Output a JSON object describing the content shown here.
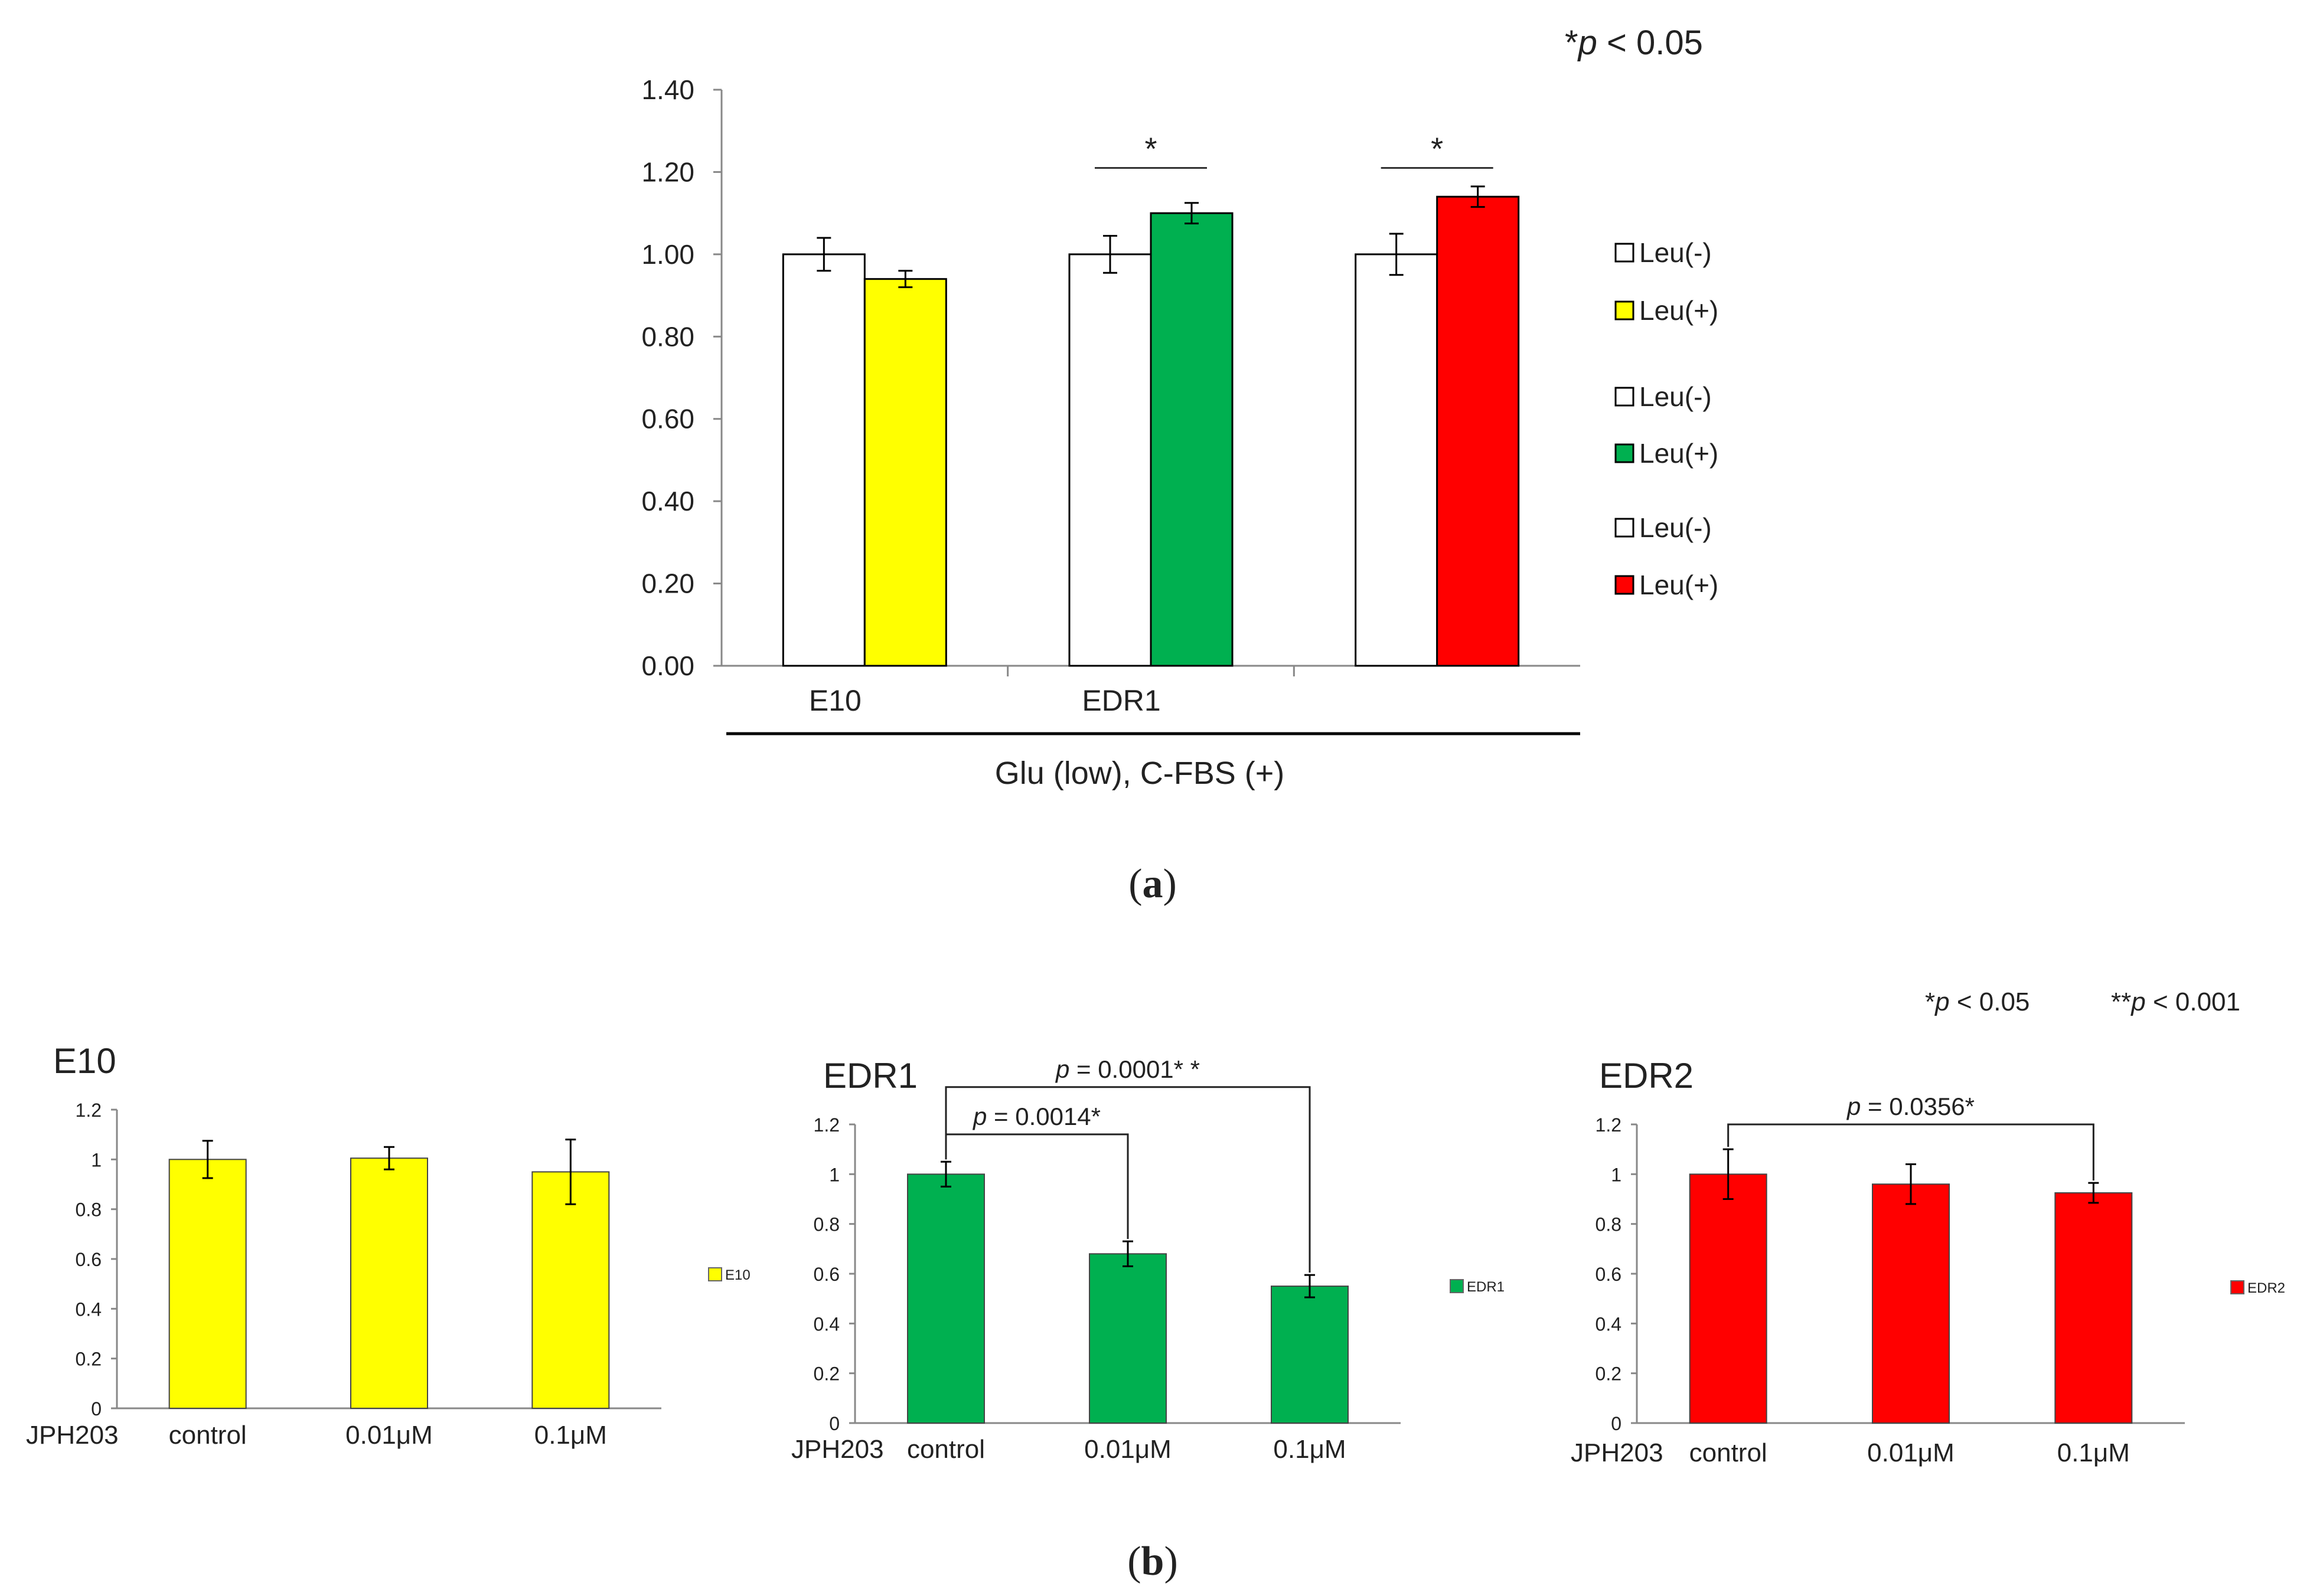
{
  "chart_data": [
    {
      "id": "a",
      "type": "bar",
      "panel_label": "(a)",
      "significance_note": "*p < 0.05",
      "group_caption": "Glu (low), C-FBS (+)",
      "categories": [
        "E10",
        "EDR1",
        ""
      ],
      "ylim": [
        0,
        1.4
      ],
      "yticks": [
        "0.00",
        "0.20",
        "0.40",
        "0.60",
        "0.80",
        "1.00",
        "1.20",
        "1.40"
      ],
      "groups": [
        {
          "name": "E10",
          "bars": [
            {
              "label": "Leu(-)",
              "value": 1.0,
              "err": 0.04,
              "color": "#ffffff"
            },
            {
              "label": "Leu(+)",
              "value": 0.94,
              "err": 0.02,
              "color": "#ffff00"
            }
          ],
          "sig": ""
        },
        {
          "name": "EDR1",
          "bars": [
            {
              "label": "Leu(-)",
              "value": 1.0,
              "err": 0.045,
              "color": "#ffffff"
            },
            {
              "label": "Leu(+)",
              "value": 1.1,
              "err": 0.025,
              "color": "#00b050"
            }
          ],
          "sig": "*"
        },
        {
          "name": "",
          "bars": [
            {
              "label": "Leu(-)",
              "value": 1.0,
              "err": 0.05,
              "color": "#ffffff"
            },
            {
              "label": "Leu(+)",
              "value": 1.14,
              "err": 0.025,
              "color": "#ff0000"
            }
          ],
          "sig": "*"
        }
      ],
      "legend": [
        {
          "label": "Leu(-)",
          "color": "#ffffff"
        },
        {
          "label": "Leu(+)",
          "color": "#ffff00"
        },
        {
          "label": "Leu(-)",
          "color": "#ffffff"
        },
        {
          "label": "Leu(+)",
          "color": "#00b050"
        },
        {
          "label": "Leu(-)",
          "color": "#ffffff"
        },
        {
          "label": "Leu(+)",
          "color": "#ff0000"
        }
      ]
    },
    {
      "id": "b1",
      "type": "bar",
      "title": "E10",
      "xlabel": "JPH203",
      "categories": [
        "control",
        "0.01μM",
        "0.1μM"
      ],
      "values": [
        1.0,
        1.005,
        0.95
      ],
      "errors": [
        0.075,
        0.045,
        0.13
      ],
      "color": "#ffff00",
      "legend": "E10",
      "ylim": [
        0,
        1.2
      ],
      "yticks": [
        "0",
        "0.2",
        "0.4",
        "0.6",
        "0.8",
        "1",
        "1.2"
      ],
      "brackets": []
    },
    {
      "id": "b2",
      "type": "bar",
      "title": "EDR1",
      "xlabel": "JPH203",
      "categories": [
        "control",
        "0.01μM",
        "0.1μM"
      ],
      "values": [
        1.0,
        0.68,
        0.55
      ],
      "errors": [
        0.05,
        0.05,
        0.045
      ],
      "color": "#00b050",
      "legend": "EDR1",
      "ylim": [
        0,
        1.2
      ],
      "yticks": [
        "0",
        "0.2",
        "0.4",
        "0.6",
        "0.8",
        "1",
        "1.2"
      ],
      "brackets": [
        {
          "from": 0,
          "to": 1,
          "level": 1.16,
          "label": "p = 0.0014*"
        },
        {
          "from": 0,
          "to": 2,
          "level": 1.35,
          "label": "p = 0.0001* *"
        }
      ]
    },
    {
      "id": "b3",
      "type": "bar",
      "title": "EDR2",
      "xlabel": "JPH203",
      "categories": [
        "control",
        "0.01μM",
        "0.1μM"
      ],
      "values": [
        1.0,
        0.96,
        0.925
      ],
      "errors": [
        0.1,
        0.08,
        0.04
      ],
      "color": "#ff0000",
      "legend": "EDR2",
      "ylim": [
        0,
        1.2
      ],
      "yticks": [
        "0",
        "0.2",
        "0.4",
        "0.6",
        "0.8",
        "1",
        "1.2"
      ],
      "brackets": [
        {
          "from": 0,
          "to": 2,
          "level": 1.2,
          "label": "p = 0.0356*"
        }
      ]
    }
  ],
  "panel_b": {
    "panel_label": "(b)",
    "significance_note_1": "*p < 0.05",
    "significance_note_2": "**p < 0.001"
  }
}
